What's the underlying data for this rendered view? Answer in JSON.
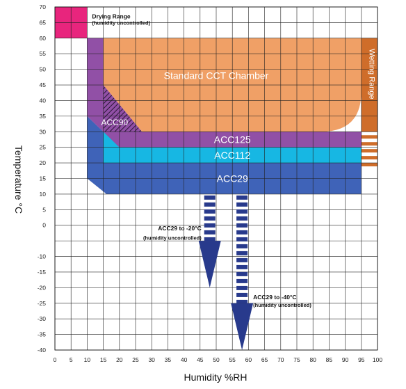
{
  "chart_data": {
    "type": "area",
    "xlabel": "Humidity %RH",
    "ylabel": "Temperature °C",
    "xlim": [
      0,
      100
    ],
    "ylim": [
      -40,
      70
    ],
    "x_ticks": [
      0,
      5,
      10,
      15,
      20,
      25,
      30,
      35,
      40,
      45,
      50,
      55,
      60,
      65,
      70,
      75,
      80,
      85,
      90,
      95,
      100
    ],
    "y_ticks": [
      70,
      65,
      60,
      55,
      50,
      45,
      40,
      35,
      30,
      25,
      20,
      15,
      10,
      5,
      0,
      -10,
      -15,
      -20,
      -25,
      -30,
      -35,
      -40
    ],
    "grid": true,
    "colors": {
      "drying": "#e8257d",
      "standard": "#f0a066",
      "acc125": "#9150a6",
      "acc112": "#17b7e3",
      "acc29": "#3f63b8",
      "wetting": "#cf6d2a",
      "arrow": "#283a8c"
    },
    "regions": [
      {
        "name": "Drying Range",
        "note": "(humidity uncontrolled)",
        "humidity": [
          0,
          10
        ],
        "temperature": [
          60,
          70
        ]
      },
      {
        "name": "Standard CCT Chamber",
        "humidity": [
          15,
          95
        ],
        "temperature": [
          30,
          60
        ]
      },
      {
        "name": "ACC125",
        "humidity": [
          10,
          95
        ],
        "temperature": [
          25,
          60
        ]
      },
      {
        "name": "ACC112",
        "humidity": [
          15,
          95
        ],
        "temperature": [
          20,
          30
        ]
      },
      {
        "name": "ACC29",
        "humidity": [
          10,
          95
        ],
        "temperature": [
          10,
          35
        ]
      },
      {
        "name": "ACC90",
        "humidity": [
          15,
          27
        ],
        "temperature": [
          30,
          45
        ]
      },
      {
        "name": "Wetting Range",
        "humidity": [
          95,
          100
        ],
        "temperature": [
          20,
          60
        ]
      }
    ],
    "extensions": [
      {
        "label": "ACC29 to -20°C",
        "note": "(humidity uncontrolled)",
        "humidity": 48,
        "temperature_to": -20
      },
      {
        "label": "ACC29 to -40°C",
        "note": "(humidity uncontrolled)",
        "humidity": 58,
        "temperature_to": -40
      }
    ]
  }
}
